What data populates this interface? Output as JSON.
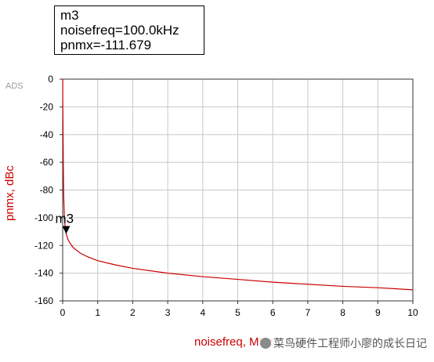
{
  "marker_box": {
    "name": "m3",
    "line1": "noisefreq=100.0kHz",
    "line2": "pnmx=-111.679"
  },
  "corner_label": "ADS",
  "watermark": "菜鸟硬件工程师小廖的成长日记",
  "chart_data": {
    "type": "line",
    "xlabel": "noisefreq, MHz",
    "ylabel": "pnmx, dBc",
    "xlim": [
      0,
      10
    ],
    "ylim": [
      -160,
      0
    ],
    "x_ticks": [
      "0",
      "1",
      "2",
      "3",
      "4",
      "5",
      "6",
      "7",
      "8",
      "9",
      "10"
    ],
    "y_ticks": [
      "0",
      "-20",
      "-40",
      "-60",
      "-80",
      "-100",
      "-120",
      "-140",
      "-160"
    ],
    "grid": true,
    "series": [
      {
        "color": "#cc0000",
        "x": [
          0.003,
          0.005,
          0.01,
          0.02,
          0.03,
          0.05,
          0.07,
          0.1,
          0.15,
          0.2,
          0.3,
          0.5,
          0.7,
          1.0,
          1.5,
          2,
          3,
          4,
          5,
          6,
          7,
          8,
          9,
          10
        ],
        "y": [
          -12,
          -20,
          -35,
          -65,
          -85,
          -100,
          -107,
          -111.7,
          -115.5,
          -118,
          -121.5,
          -125.5,
          -128,
          -131,
          -134,
          -136.5,
          -140,
          -142.5,
          -144.5,
          -146.5,
          -148,
          -149.5,
          -150.5,
          -152
        ]
      }
    ],
    "markers": [
      {
        "label": "m3",
        "x": 0.1,
        "y": -111.679
      }
    ]
  }
}
